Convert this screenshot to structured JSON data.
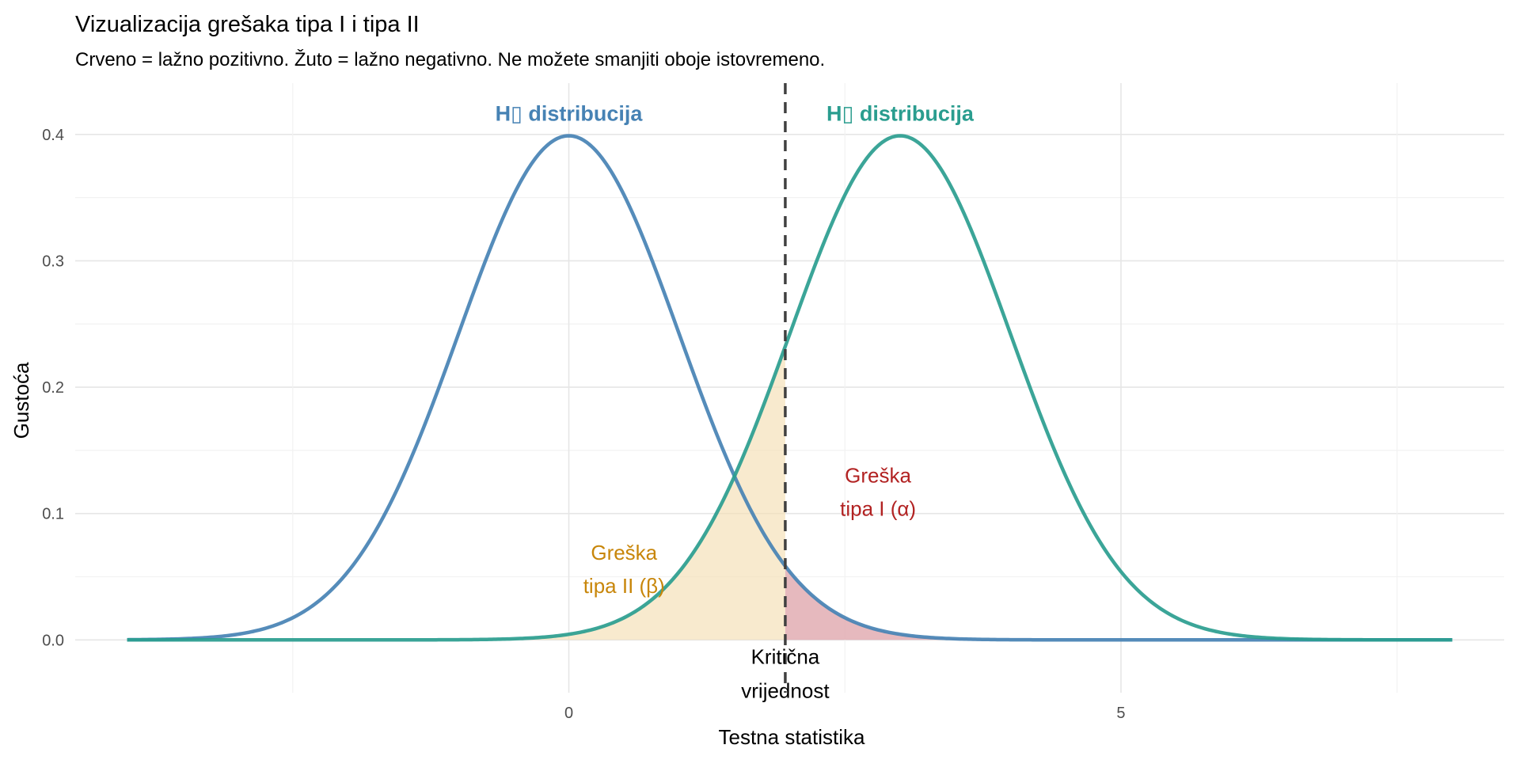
{
  "chart_data": {
    "type": "line",
    "title": "Vizualizacija grešaka tipa I i tipa II",
    "subtitle": "Crveno = lažno pozitivno. Žuto = lažno negativno. Ne možete smanjiti oboje istovremeno.",
    "xlabel": "Testna statistika",
    "ylabel": "Gustoća",
    "xlim": [
      -4.47,
      8.47
    ],
    "ylim": [
      -0.0418,
      0.4406
    ],
    "x_ticks": [
      0,
      5
    ],
    "x_tick_labels": [
      "0",
      "5"
    ],
    "y_ticks": [
      0.0,
      0.1,
      0.2,
      0.3,
      0.4
    ],
    "y_tick_labels": [
      "0.0",
      "0.1",
      "0.2",
      "0.3",
      "0.4"
    ],
    "grid": true,
    "series": [
      {
        "name": "H▯ distribucija",
        "distribution": "normal",
        "mean": 0,
        "sd": 1,
        "x_range": [
          -4,
          8
        ],
        "color": "#4682B4"
      },
      {
        "name": "H▯ distribucija",
        "distribution": "normal",
        "mean": 3,
        "sd": 1,
        "x_range": [
          -4,
          8
        ],
        "color": "#2A9D8F"
      }
    ],
    "critical_value": 1.96,
    "critical_label_line1": "Kritična",
    "critical_label_line2": "vrijednost",
    "regions": [
      {
        "label_line1": "Greška",
        "label_line2": "tipa II (β)",
        "fill": "#F5DEB3",
        "text_color": "#C8860A",
        "label_x": 0.5,
        "label_y": 0.056
      },
      {
        "label_line1": "Greška",
        "label_line2": "tipa I (α)",
        "fill": "#E0A8AE",
        "text_color": "#B22222",
        "label_x": 2.8,
        "label_y": 0.117
      }
    ],
    "annotations": [
      {
        "text": "H▯ distribucija",
        "x": 0,
        "y": 0.417,
        "color": "#4682B4"
      },
      {
        "text": "H▯ distribucija",
        "x": 3,
        "y": 0.417,
        "color": "#2A9D8F"
      }
    ]
  }
}
